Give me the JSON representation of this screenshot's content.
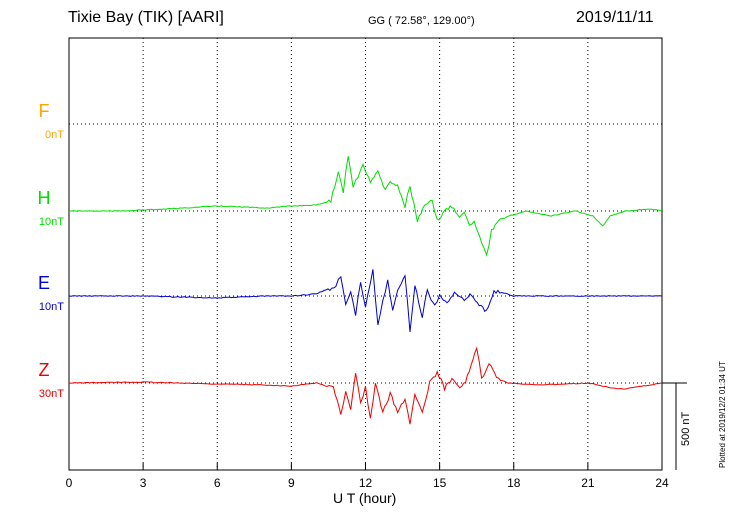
{
  "header": {
    "station": "Tixie Bay (TIK)  [AARI]",
    "coords": "GG ( 72.58°, 129.00°)",
    "date": "2019/11/11"
  },
  "footer": {
    "plotted": "Plotted at 2019/12/2 01:34 UT"
  },
  "chart_data": {
    "type": "line",
    "title": "Tixie Bay (TIK)  [AARI]",
    "xlabel": "U T (hour)",
    "xlim": [
      0,
      24
    ],
    "xticks": [
      "0",
      "3",
      "6",
      "9",
      "12",
      "15",
      "18",
      "21",
      "24"
    ],
    "grid": true,
    "scale_bar_label": "500 nT",
    "components": [
      {
        "name": "F",
        "scale": "0nT",
        "color": "#ffa500",
        "points": []
      },
      {
        "name": "H",
        "scale": "10nT",
        "color": "#00dd00",
        "points": [
          [
            0,
            0
          ],
          [
            2,
            0
          ],
          [
            4,
            -2
          ],
          [
            6,
            -5
          ],
          [
            7,
            -4
          ],
          [
            8,
            -3
          ],
          [
            9,
            -5
          ],
          [
            10,
            -6
          ],
          [
            10.6,
            -10
          ],
          [
            10.9,
            -40
          ],
          [
            11.1,
            -20
          ],
          [
            11.3,
            -55
          ],
          [
            11.5,
            -25
          ],
          [
            11.7,
            -35
          ],
          [
            11.9,
            -45
          ],
          [
            12.2,
            -30
          ],
          [
            12.5,
            -40
          ],
          [
            12.8,
            -20
          ],
          [
            13.0,
            -30
          ],
          [
            13.3,
            -25
          ],
          [
            13.6,
            -5
          ],
          [
            13.8,
            -25
          ],
          [
            14.1,
            10
          ],
          [
            14.4,
            -5
          ],
          [
            14.7,
            -10
          ],
          [
            14.9,
            10
          ],
          [
            15.2,
            0
          ],
          [
            15.5,
            -5
          ],
          [
            15.8,
            5
          ],
          [
            16.0,
            0
          ],
          [
            16.2,
            15
          ],
          [
            16.4,
            10
          ],
          [
            16.7,
            30
          ],
          [
            16.9,
            45
          ],
          [
            17.1,
            20
          ],
          [
            17.4,
            10
          ],
          [
            17.8,
            5
          ],
          [
            18.5,
            0
          ],
          [
            19.5,
            5
          ],
          [
            20.5,
            0
          ],
          [
            21.2,
            5
          ],
          [
            21.6,
            15
          ],
          [
            21.9,
            5
          ],
          [
            22.5,
            0
          ],
          [
            23.5,
            -2
          ],
          [
            24,
            0
          ]
        ]
      },
      {
        "name": "E",
        "scale": "10nT",
        "color": "#0000cc",
        "points": [
          [
            0,
            0
          ],
          [
            3,
            0
          ],
          [
            6,
            2
          ],
          [
            8,
            0
          ],
          [
            9,
            0
          ],
          [
            10,
            -2
          ],
          [
            10.8,
            -10
          ],
          [
            11.0,
            -20
          ],
          [
            11.2,
            10
          ],
          [
            11.4,
            -5
          ],
          [
            11.6,
            20
          ],
          [
            11.8,
            -15
          ],
          [
            12.0,
            10
          ],
          [
            12.3,
            -25
          ],
          [
            12.5,
            30
          ],
          [
            12.7,
            5
          ],
          [
            12.9,
            -15
          ],
          [
            13.1,
            15
          ],
          [
            13.3,
            -5
          ],
          [
            13.6,
            -20
          ],
          [
            13.8,
            35
          ],
          [
            14.0,
            -10
          ],
          [
            14.3,
            20
          ],
          [
            14.5,
            -5
          ],
          [
            14.8,
            10
          ],
          [
            15.0,
            0
          ],
          [
            15.3,
            5
          ],
          [
            15.6,
            -3
          ],
          [
            16.0,
            5
          ],
          [
            16.3,
            -2
          ],
          [
            16.6,
            10
          ],
          [
            16.9,
            15
          ],
          [
            17.2,
            -5
          ],
          [
            17.6,
            -3
          ],
          [
            18,
            0
          ],
          [
            20,
            0
          ],
          [
            22,
            0
          ],
          [
            24,
            0
          ]
        ]
      },
      {
        "name": "Z",
        "scale": "30nT",
        "color": "#ee0000",
        "points": [
          [
            0,
            0
          ],
          [
            3,
            -1
          ],
          [
            6,
            1
          ],
          [
            8,
            2
          ],
          [
            9,
            3
          ],
          [
            10,
            0
          ],
          [
            10.7,
            5
          ],
          [
            11.0,
            30
          ],
          [
            11.2,
            10
          ],
          [
            11.4,
            25
          ],
          [
            11.6,
            -10
          ],
          [
            11.8,
            20
          ],
          [
            12.0,
            5
          ],
          [
            12.2,
            35
          ],
          [
            12.4,
            0
          ],
          [
            12.7,
            30
          ],
          [
            13.0,
            10
          ],
          [
            13.3,
            30
          ],
          [
            13.6,
            15
          ],
          [
            13.8,
            40
          ],
          [
            14.0,
            10
          ],
          [
            14.3,
            30
          ],
          [
            14.6,
            0
          ],
          [
            14.9,
            -10
          ],
          [
            15.2,
            5
          ],
          [
            15.5,
            -5
          ],
          [
            15.9,
            5
          ],
          [
            16.2,
            -10
          ],
          [
            16.5,
            -35
          ],
          [
            16.7,
            -5
          ],
          [
            17.0,
            -20
          ],
          [
            17.3,
            -5
          ],
          [
            17.8,
            0
          ],
          [
            19,
            2
          ],
          [
            21,
            0
          ],
          [
            22,
            5
          ],
          [
            22.5,
            6
          ],
          [
            23,
            4
          ],
          [
            24,
            0
          ]
        ]
      }
    ]
  }
}
